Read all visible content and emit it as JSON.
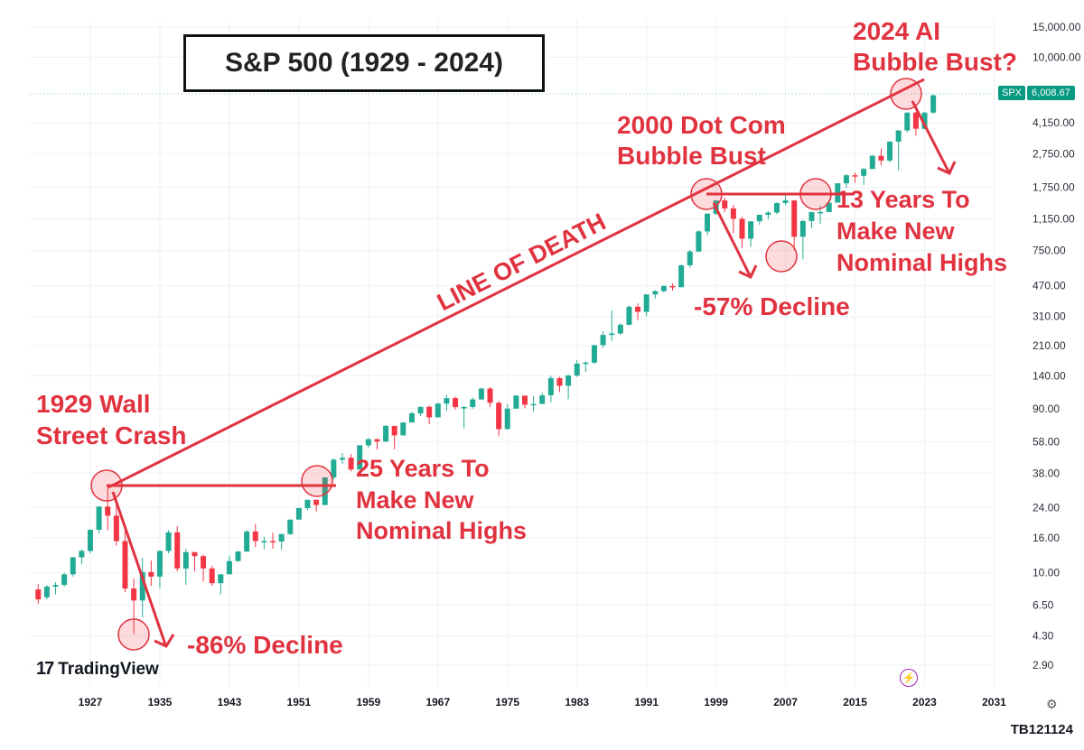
{
  "title": "S&P 500 (1929 - 2024)",
  "brand": {
    "name": "TradingView",
    "mark": "17"
  },
  "footer_id": "TB121124",
  "price_tag": {
    "symbol": "SPX",
    "value": "6,008.67"
  },
  "colors": {
    "up": "#22ab94",
    "down": "#f23645",
    "annotation": "#e0323f",
    "grid": "#eef0f3"
  },
  "icons": [
    "tradingview-logo-icon",
    "lightning-icon",
    "settings-gear-icon"
  ],
  "annotations": {
    "crash1929": [
      "1929 Wall",
      "Street Crash"
    ],
    "recover25": [
      "25 Years To",
      "Make New",
      "Nominal Highs"
    ],
    "decline86": "-86% Decline",
    "line_of_death": "LINE OF DEATH",
    "dotcom": [
      "2000 Dot Com",
      "Bubble Bust"
    ],
    "decline57": "-57% Decline",
    "recover13": [
      "13 Years To",
      "Make New",
      "Nominal Highs"
    ],
    "ai2024": [
      "2024 AI",
      "Bubble Bust?"
    ]
  },
  "chart_data": {
    "type": "candlestick",
    "title": "S&P 500 (1929 - 2024)",
    "scale": "log",
    "ylim": [
      2.2,
      19000
    ],
    "xlim": [
      1920,
      2035
    ],
    "y_ticks": [
      "15,000.00",
      "10,000.00",
      "4,150.00",
      "2,750.00",
      "1,750.00",
      "1,150.00",
      "750.00",
      "470.00",
      "310.00",
      "210.00",
      "140.00",
      "90.00",
      "58.00",
      "38.00",
      "24.00",
      "16.00",
      "10.00",
      "6.50",
      "4.30",
      "2.90"
    ],
    "y_tick_values": [
      15000,
      10000,
      4150,
      2750,
      1750,
      1150,
      750,
      470,
      310,
      210,
      140,
      90,
      58,
      38,
      24,
      16,
      10,
      6.5,
      4.3,
      2.9
    ],
    "x_ticks": [
      "1927",
      "1935",
      "1943",
      "1951",
      "1959",
      "1967",
      "1975",
      "1983",
      "1991",
      "1999",
      "2007",
      "2015",
      "2023",
      "2031"
    ],
    "x_tick_values": [
      1927,
      1935,
      1943,
      1951,
      1959,
      1967,
      1975,
      1983,
      1991,
      1999,
      2007,
      2015,
      2023,
      2031
    ],
    "series": [
      {
        "name": "SPX",
        "candles": [
          [
            1921,
            8.0,
            8.6,
            6.6,
            7.0
          ],
          [
            1922,
            7.2,
            8.5,
            7.0,
            8.3
          ],
          [
            1923,
            8.3,
            8.8,
            7.5,
            8.5
          ],
          [
            1924,
            8.5,
            10.0,
            8.3,
            9.8
          ],
          [
            1925,
            9.8,
            12.4,
            9.5,
            12.3
          ],
          [
            1926,
            12.3,
            13.7,
            11.2,
            13.4
          ],
          [
            1927,
            13.4,
            17.9,
            13.0,
            17.8
          ],
          [
            1928,
            17.8,
            24.4,
            16.9,
            24.3
          ],
          [
            1929,
            24.3,
            31.9,
            17.7,
            21.5
          ],
          [
            1930,
            21.5,
            25.9,
            14.4,
            15.3
          ],
          [
            1931,
            15.3,
            18.2,
            7.7,
            8.1
          ],
          [
            1932,
            8.1,
            9.3,
            4.4,
            6.9
          ],
          [
            1933,
            6.9,
            12.2,
            5.5,
            10.1
          ],
          [
            1934,
            10.1,
            11.8,
            8.4,
            9.5
          ],
          [
            1935,
            9.5,
            13.5,
            8.1,
            13.4
          ],
          [
            1936,
            13.4,
            17.7,
            13.0,
            17.2
          ],
          [
            1937,
            17.2,
            18.7,
            10.2,
            10.6
          ],
          [
            1938,
            10.6,
            13.8,
            8.5,
            13.2
          ],
          [
            1939,
            13.2,
            13.2,
            10.2,
            12.5
          ],
          [
            1940,
            12.5,
            12.8,
            8.9,
            10.6
          ],
          [
            1941,
            10.6,
            11.0,
            8.4,
            8.7
          ],
          [
            1942,
            8.7,
            9.8,
            7.5,
            9.8
          ],
          [
            1943,
            9.8,
            12.6,
            9.8,
            11.7
          ],
          [
            1944,
            11.7,
            13.4,
            11.6,
            13.3
          ],
          [
            1945,
            13.3,
            17.7,
            13.2,
            17.4
          ],
          [
            1946,
            17.4,
            19.3,
            14.1,
            15.3
          ],
          [
            1947,
            15.3,
            16.2,
            13.7,
            15.3
          ],
          [
            1948,
            15.3,
            17.1,
            13.8,
            15.2
          ],
          [
            1949,
            15.2,
            16.8,
            13.6,
            16.8
          ],
          [
            1950,
            16.8,
            20.4,
            16.6,
            20.4
          ],
          [
            1951,
            20.4,
            23.9,
            20.5,
            23.8
          ],
          [
            1952,
            23.8,
            26.6,
            23.1,
            26.6
          ],
          [
            1953,
            26.6,
            26.7,
            22.7,
            24.8
          ],
          [
            1954,
            24.8,
            36.0,
            24.8,
            35.9
          ],
          [
            1955,
            35.9,
            46.4,
            35.0,
            45.5
          ],
          [
            1956,
            45.5,
            49.7,
            43.1,
            46.7
          ],
          [
            1957,
            46.7,
            49.1,
            38.9,
            39.9
          ],
          [
            1958,
            39.9,
            55.2,
            40.3,
            55.2
          ],
          [
            1959,
            55.2,
            60.7,
            53.6,
            59.9
          ],
          [
            1960,
            59.9,
            60.4,
            52.2,
            58.1
          ],
          [
            1961,
            58.1,
            72.6,
            57.6,
            71.6
          ],
          [
            1962,
            71.6,
            71.1,
            52.3,
            63.1
          ],
          [
            1963,
            63.1,
            75.0,
            62.7,
            75.0
          ],
          [
            1964,
            75.0,
            86.3,
            75.4,
            84.8
          ],
          [
            1965,
            84.8,
            92.6,
            81.6,
            92.4
          ],
          [
            1966,
            92.4,
            94.1,
            73.2,
            80.3
          ],
          [
            1967,
            80.3,
            97.6,
            80.4,
            96.5
          ],
          [
            1968,
            96.5,
            108.4,
            87.7,
            103.9
          ],
          [
            1969,
            103.9,
            106.2,
            89.2,
            92.1
          ],
          [
            1970,
            92.1,
            93.5,
            69.3,
            92.2
          ],
          [
            1971,
            92.2,
            104.8,
            90.2,
            102.1
          ],
          [
            1972,
            102.1,
            119.1,
            101.7,
            118.1
          ],
          [
            1973,
            118.1,
            120.2,
            92.2,
            97.6
          ],
          [
            1974,
            97.6,
            99.8,
            62.3,
            68.6
          ],
          [
            1975,
            68.6,
            95.6,
            70.0,
            90.2
          ],
          [
            1976,
            90.2,
            107.8,
            90.9,
            107.5
          ],
          [
            1977,
            107.5,
            107.0,
            90.7,
            95.1
          ],
          [
            1978,
            95.1,
            106.9,
            86.9,
            96.1
          ],
          [
            1979,
            96.1,
            111.3,
            96.1,
            107.9
          ],
          [
            1980,
            107.9,
            140.5,
            98.2,
            135.8
          ],
          [
            1981,
            135.8,
            138.1,
            112.8,
            122.6
          ],
          [
            1982,
            122.6,
            143.0,
            102.4,
            140.6
          ],
          [
            1983,
            140.6,
            172.7,
            138.3,
            164.9
          ],
          [
            1984,
            164.9,
            170.4,
            147.8,
            167.2
          ],
          [
            1985,
            167.2,
            212.0,
            163.7,
            211.3
          ],
          [
            1986,
            211.3,
            254.0,
            203.5,
            242.2
          ],
          [
            1987,
            242.2,
            336.8,
            223.9,
            247.1
          ],
          [
            1988,
            247.1,
            283.7,
            242.6,
            277.7
          ],
          [
            1989,
            277.7,
            359.8,
            275.3,
            353.4
          ],
          [
            1990,
            353.4,
            369.8,
            295.5,
            330.2
          ],
          [
            1991,
            330.2,
            418.3,
            311.5,
            417.1
          ],
          [
            1992,
            417.1,
            441.3,
            394.5,
            435.7
          ],
          [
            1993,
            435.7,
            470.9,
            429.0,
            466.5
          ],
          [
            1994,
            466.5,
            482.9,
            438.9,
            459.3
          ],
          [
            1995,
            459.3,
            621.7,
            457.2,
            615.9
          ],
          [
            1996,
            615.9,
            757.0,
            597.3,
            740.7
          ],
          [
            1997,
            740.7,
            983.8,
            737.0,
            970.4
          ],
          [
            1998,
            970.4,
            1241.8,
            923.3,
            1229.2
          ],
          [
            1999,
            1229.2,
            1469.3,
            1212.2,
            1469.3
          ],
          [
            2000,
            1469.3,
            1527.5,
            1254.1,
            1320.3
          ],
          [
            2001,
            1320.3,
            1383.4,
            944.8,
            1148.1
          ],
          [
            2002,
            1148.1,
            1176.9,
            776.8,
            879.8
          ],
          [
            2003,
            879.8,
            1111.9,
            788.9,
            1111.9
          ],
          [
            2004,
            1111.9,
            1213.6,
            1063.2,
            1211.9
          ],
          [
            2005,
            1211.9,
            1272.7,
            1137.5,
            1248.3
          ],
          [
            2006,
            1248.3,
            1431.8,
            1219.3,
            1418.3
          ],
          [
            2007,
            1418.3,
            1576.1,
            1374.1,
            1468.4
          ],
          [
            2008,
            1468.4,
            1471.8,
            752.4,
            903.3
          ],
          [
            2009,
            903.3,
            1130.4,
            666.8,
            1115.1
          ],
          [
            2010,
            1115.1,
            1262.6,
            1010.9,
            1257.6
          ],
          [
            2011,
            1257.6,
            1370.6,
            1074.8,
            1257.6
          ],
          [
            2012,
            1257.6,
            1474.5,
            1266.7,
            1426.2
          ],
          [
            2013,
            1426.2,
            1849.4,
            1426.2,
            1848.4
          ],
          [
            2014,
            1848.4,
            2093.6,
            1737.9,
            2058.9
          ],
          [
            2015,
            2058.9,
            2134.7,
            1867.0,
            2043.9
          ],
          [
            2016,
            2043.9,
            2277.5,
            1810.1,
            2238.8
          ],
          [
            2017,
            2238.8,
            2694.0,
            2245.1,
            2673.6
          ],
          [
            2018,
            2673.6,
            2940.9,
            2346.6,
            2506.9
          ],
          [
            2019,
            2506.9,
            3247.9,
            2443.9,
            3230.8
          ],
          [
            2020,
            3230.8,
            3756.1,
            2191.9,
            3756.1
          ],
          [
            2021,
            3756.1,
            4793.1,
            3662.7,
            4766.2
          ],
          [
            2022,
            4766.2,
            4818.6,
            3491.6,
            3839.5
          ],
          [
            2023,
            3839.5,
            4793.3,
            3808.9,
            4769.8
          ],
          [
            2024,
            4769.8,
            6090.3,
            4682.1,
            6008.7
          ]
        ]
      }
    ],
    "trend_lines": [
      {
        "name": "LINE OF DEATH",
        "from": [
          1929.5,
          32
        ],
        "to": [
          2028.5,
          8400
        ]
      },
      {
        "name": "1929 high to 1954 recovery",
        "from": [
          1929,
          32
        ],
        "to": [
          1955.2,
          32
        ]
      },
      {
        "name": "2000 high to 2013 recovery",
        "from": [
          2000,
          1553
        ],
        "to": [
          2014,
          1553
        ]
      }
    ]
  }
}
